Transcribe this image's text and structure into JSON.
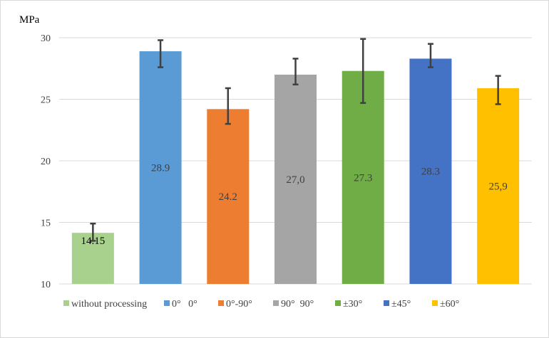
{
  "chart_data": {
    "type": "bar",
    "ylabel": "MPa",
    "ylim": [
      10,
      30
    ],
    "yticks": [
      10,
      15,
      20,
      25,
      30
    ],
    "grid": true,
    "legend_position": "bottom",
    "categories": [
      "without processing",
      "0°   0°",
      "0°-90°",
      "90°  90°",
      "±30°",
      "±45°",
      "±60°"
    ],
    "values": [
      14.15,
      28.9,
      24.2,
      27.0,
      27.3,
      28.3,
      25.9
    ],
    "data_labels": [
      "14.15",
      "28.9",
      "24.2",
      "27,0",
      "27.3",
      "28.3",
      "25,9"
    ],
    "error_low": [
      13.5,
      27.6,
      23.0,
      26.2,
      24.7,
      27.6,
      24.6
    ],
    "error_high": [
      14.9,
      29.8,
      25.9,
      28.3,
      29.9,
      29.5,
      26.9
    ],
    "colors": [
      "#a9d18e",
      "#5b9bd5",
      "#ed7d31",
      "#a5a5a5",
      "#70ad47",
      "#4472c4",
      "#ffc000"
    ],
    "label_colors": [
      "#000000",
      "#404040",
      "#404040",
      "#404040",
      "#404040",
      "#404040",
      "#404040"
    ]
  }
}
